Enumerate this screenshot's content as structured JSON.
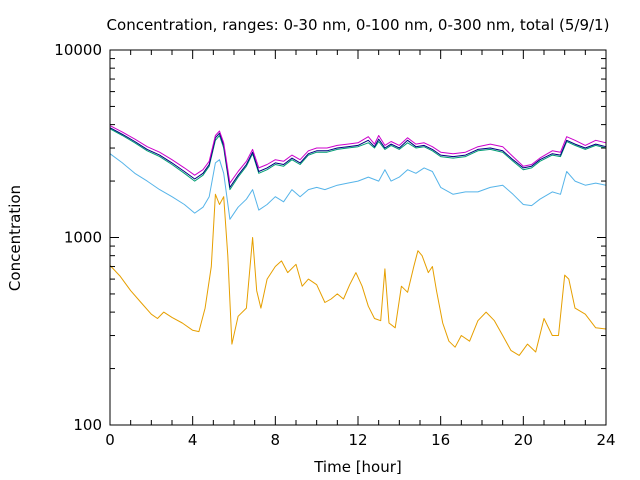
{
  "chart_data": {
    "type": "line",
    "title": "Concentration, ranges: 0-30 nm, 0-100 nm, 0-300 nm, total (5/9/1)",
    "xlabel": "Time [hour]",
    "ylabel": "Concentration",
    "xlim": [
      0,
      24
    ],
    "ylim": [
      100,
      10000
    ],
    "yscale": "log",
    "grid": false,
    "legend": "none",
    "x_ticks": [
      "0",
      "4",
      "8",
      "12",
      "16",
      "20",
      "24"
    ],
    "y_ticks": [
      "100",
      "1000",
      "10000"
    ],
    "series": [
      {
        "color": "#e69f00",
        "points": [
          [
            0,
            710
          ],
          [
            0.5,
            620
          ],
          [
            1,
            520
          ],
          [
            1.5,
            450
          ],
          [
            2,
            390
          ],
          [
            2.3,
            370
          ],
          [
            2.6,
            400
          ],
          [
            3,
            375
          ],
          [
            3.5,
            350
          ],
          [
            4,
            320
          ],
          [
            4.3,
            315
          ],
          [
            4.6,
            420
          ],
          [
            4.9,
            700
          ],
          [
            5.1,
            1700
          ],
          [
            5.3,
            1500
          ],
          [
            5.5,
            1650
          ],
          [
            5.7,
            800
          ],
          [
            5.9,
            270
          ],
          [
            6.2,
            380
          ],
          [
            6.6,
            420
          ],
          [
            6.9,
            1000
          ],
          [
            7.1,
            520
          ],
          [
            7.3,
            420
          ],
          [
            7.6,
            600
          ],
          [
            8,
            700
          ],
          [
            8.3,
            750
          ],
          [
            8.6,
            650
          ],
          [
            9,
            720
          ],
          [
            9.3,
            550
          ],
          [
            9.6,
            600
          ],
          [
            10,
            560
          ],
          [
            10.4,
            450
          ],
          [
            10.7,
            470
          ],
          [
            11,
            500
          ],
          [
            11.3,
            470
          ],
          [
            11.6,
            560
          ],
          [
            11.9,
            650
          ],
          [
            12.2,
            550
          ],
          [
            12.5,
            430
          ],
          [
            12.8,
            370
          ],
          [
            13.1,
            360
          ],
          [
            13.3,
            680
          ],
          [
            13.5,
            350
          ],
          [
            13.8,
            330
          ],
          [
            14.1,
            550
          ],
          [
            14.4,
            510
          ],
          [
            14.7,
            700
          ],
          [
            14.9,
            850
          ],
          [
            15.1,
            800
          ],
          [
            15.4,
            650
          ],
          [
            15.6,
            700
          ],
          [
            15.8,
            520
          ],
          [
            16.1,
            350
          ],
          [
            16.4,
            280
          ],
          [
            16.7,
            260
          ],
          [
            17,
            300
          ],
          [
            17.4,
            280
          ],
          [
            17.8,
            360
          ],
          [
            18.2,
            400
          ],
          [
            18.6,
            360
          ],
          [
            19,
            300
          ],
          [
            19.4,
            250
          ],
          [
            19.8,
            235
          ],
          [
            20.2,
            270
          ],
          [
            20.6,
            245
          ],
          [
            21,
            370
          ],
          [
            21.4,
            300
          ],
          [
            21.7,
            300
          ],
          [
            22,
            630
          ],
          [
            22.2,
            600
          ],
          [
            22.5,
            420
          ],
          [
            23,
            390
          ],
          [
            23.5,
            330
          ],
          [
            24,
            325
          ]
        ]
      },
      {
        "color": "#56b4e9",
        "points": [
          [
            0,
            2800
          ],
          [
            0.6,
            2500
          ],
          [
            1.2,
            2200
          ],
          [
            1.8,
            2000
          ],
          [
            2.4,
            1800
          ],
          [
            3,
            1650
          ],
          [
            3.6,
            1500
          ],
          [
            4.1,
            1350
          ],
          [
            4.5,
            1450
          ],
          [
            4.8,
            1650
          ],
          [
            5.1,
            2500
          ],
          [
            5.3,
            2600
          ],
          [
            5.5,
            2200
          ],
          [
            5.8,
            1250
          ],
          [
            6.2,
            1450
          ],
          [
            6.6,
            1600
          ],
          [
            6.9,
            1800
          ],
          [
            7.2,
            1400
          ],
          [
            7.6,
            1500
          ],
          [
            8,
            1650
          ],
          [
            8.4,
            1550
          ],
          [
            8.8,
            1800
          ],
          [
            9.2,
            1650
          ],
          [
            9.6,
            1800
          ],
          [
            10,
            1850
          ],
          [
            10.4,
            1800
          ],
          [
            11,
            1900
          ],
          [
            11.5,
            1950
          ],
          [
            12,
            2000
          ],
          [
            12.5,
            2100
          ],
          [
            13,
            2000
          ],
          [
            13.3,
            2300
          ],
          [
            13.6,
            2000
          ],
          [
            14,
            2100
          ],
          [
            14.4,
            2300
          ],
          [
            14.8,
            2200
          ],
          [
            15.2,
            2350
          ],
          [
            15.6,
            2250
          ],
          [
            16,
            1850
          ],
          [
            16.6,
            1700
          ],
          [
            17.2,
            1750
          ],
          [
            17.8,
            1750
          ],
          [
            18.4,
            1850
          ],
          [
            19,
            1900
          ],
          [
            19.5,
            1700
          ],
          [
            20,
            1500
          ],
          [
            20.4,
            1480
          ],
          [
            20.8,
            1600
          ],
          [
            21.4,
            1750
          ],
          [
            21.8,
            1700
          ],
          [
            22.1,
            2250
          ],
          [
            22.5,
            2000
          ],
          [
            23,
            1900
          ],
          [
            23.5,
            1950
          ],
          [
            24,
            1900
          ]
        ]
      },
      {
        "color": "#009e73",
        "points": [
          [
            0,
            3800
          ],
          [
            0.6,
            3500
          ],
          [
            1.2,
            3200
          ],
          [
            1.8,
            2900
          ],
          [
            2.4,
            2700
          ],
          [
            3,
            2450
          ],
          [
            3.6,
            2200
          ],
          [
            4.1,
            2000
          ],
          [
            4.5,
            2150
          ],
          [
            4.8,
            2400
          ],
          [
            5.1,
            3300
          ],
          [
            5.3,
            3500
          ],
          [
            5.5,
            3000
          ],
          [
            5.8,
            1800
          ],
          [
            6.2,
            2100
          ],
          [
            6.6,
            2400
          ],
          [
            6.9,
            2800
          ],
          [
            7.2,
            2200
          ],
          [
            7.6,
            2300
          ],
          [
            8,
            2450
          ],
          [
            8.4,
            2400
          ],
          [
            8.8,
            2600
          ],
          [
            9.2,
            2450
          ],
          [
            9.6,
            2750
          ],
          [
            10,
            2850
          ],
          [
            10.5,
            2850
          ],
          [
            11,
            2950
          ],
          [
            11.5,
            3000
          ],
          [
            12,
            3050
          ],
          [
            12.5,
            3200
          ],
          [
            12.8,
            3000
          ],
          [
            13,
            3250
          ],
          [
            13.3,
            2950
          ],
          [
            13.6,
            3100
          ],
          [
            14,
            2950
          ],
          [
            14.4,
            3200
          ],
          [
            14.8,
            3000
          ],
          [
            15.2,
            3050
          ],
          [
            15.6,
            2900
          ],
          [
            16,
            2700
          ],
          [
            16.6,
            2650
          ],
          [
            17.2,
            2700
          ],
          [
            17.8,
            2900
          ],
          [
            18.4,
            2950
          ],
          [
            19,
            2850
          ],
          [
            19.5,
            2550
          ],
          [
            20,
            2300
          ],
          [
            20.4,
            2350
          ],
          [
            20.8,
            2550
          ],
          [
            21.4,
            2750
          ],
          [
            21.8,
            2700
          ],
          [
            22.1,
            3250
          ],
          [
            22.5,
            3100
          ],
          [
            23,
            2950
          ],
          [
            23.5,
            3100
          ],
          [
            24,
            3000
          ]
        ]
      },
      {
        "color": "#000080",
        "points": [
          [
            0,
            3850
          ],
          [
            0.6,
            3550
          ],
          [
            1.2,
            3250
          ],
          [
            1.8,
            2950
          ],
          [
            2.4,
            2750
          ],
          [
            3,
            2500
          ],
          [
            3.6,
            2250
          ],
          [
            4.1,
            2050
          ],
          [
            4.5,
            2200
          ],
          [
            4.8,
            2450
          ],
          [
            5.1,
            3400
          ],
          [
            5.3,
            3600
          ],
          [
            5.5,
            3100
          ],
          [
            5.8,
            1850
          ],
          [
            6.2,
            2150
          ],
          [
            6.6,
            2450
          ],
          [
            6.9,
            2850
          ],
          [
            7.2,
            2250
          ],
          [
            7.6,
            2350
          ],
          [
            8,
            2500
          ],
          [
            8.4,
            2450
          ],
          [
            8.8,
            2650
          ],
          [
            9.2,
            2500
          ],
          [
            9.6,
            2800
          ],
          [
            10,
            2900
          ],
          [
            10.5,
            2900
          ],
          [
            11,
            3000
          ],
          [
            11.5,
            3050
          ],
          [
            12,
            3100
          ],
          [
            12.5,
            3300
          ],
          [
            12.8,
            3050
          ],
          [
            13,
            3350
          ],
          [
            13.3,
            3000
          ],
          [
            13.6,
            3150
          ],
          [
            14,
            3000
          ],
          [
            14.4,
            3300
          ],
          [
            14.8,
            3050
          ],
          [
            15.2,
            3100
          ],
          [
            15.6,
            2950
          ],
          [
            16,
            2750
          ],
          [
            16.6,
            2700
          ],
          [
            17.2,
            2750
          ],
          [
            17.8,
            2950
          ],
          [
            18.4,
            3000
          ],
          [
            19,
            2900
          ],
          [
            19.5,
            2600
          ],
          [
            20,
            2350
          ],
          [
            20.4,
            2400
          ],
          [
            20.8,
            2600
          ],
          [
            21.4,
            2800
          ],
          [
            21.8,
            2750
          ],
          [
            22.1,
            3300
          ],
          [
            22.5,
            3150
          ],
          [
            23,
            3000
          ],
          [
            23.5,
            3150
          ],
          [
            24,
            3050
          ]
        ]
      },
      {
        "color": "#cc00cc",
        "points": [
          [
            0,
            3950
          ],
          [
            0.6,
            3650
          ],
          [
            1.2,
            3350
          ],
          [
            1.8,
            3050
          ],
          [
            2.4,
            2850
          ],
          [
            3,
            2600
          ],
          [
            3.6,
            2350
          ],
          [
            4.1,
            2150
          ],
          [
            4.5,
            2300
          ],
          [
            4.8,
            2550
          ],
          [
            5.1,
            3500
          ],
          [
            5.3,
            3700
          ],
          [
            5.5,
            3200
          ],
          [
            5.8,
            1950
          ],
          [
            6.2,
            2250
          ],
          [
            6.6,
            2550
          ],
          [
            6.9,
            2950
          ],
          [
            7.2,
            2350
          ],
          [
            7.6,
            2450
          ],
          [
            8,
            2600
          ],
          [
            8.4,
            2550
          ],
          [
            8.8,
            2750
          ],
          [
            9.2,
            2600
          ],
          [
            9.6,
            2900
          ],
          [
            10,
            3000
          ],
          [
            10.5,
            3000
          ],
          [
            11,
            3100
          ],
          [
            11.5,
            3150
          ],
          [
            12,
            3200
          ],
          [
            12.5,
            3450
          ],
          [
            12.8,
            3150
          ],
          [
            13,
            3500
          ],
          [
            13.3,
            3100
          ],
          [
            13.6,
            3250
          ],
          [
            14,
            3100
          ],
          [
            14.4,
            3400
          ],
          [
            14.8,
            3150
          ],
          [
            15.2,
            3200
          ],
          [
            15.6,
            3050
          ],
          [
            16,
            2850
          ],
          [
            16.6,
            2800
          ],
          [
            17.2,
            2850
          ],
          [
            17.8,
            3050
          ],
          [
            18.4,
            3150
          ],
          [
            19,
            3050
          ],
          [
            19.5,
            2700
          ],
          [
            20,
            2400
          ],
          [
            20.4,
            2450
          ],
          [
            20.8,
            2650
          ],
          [
            21.4,
            2900
          ],
          [
            21.8,
            2850
          ],
          [
            22.1,
            3450
          ],
          [
            22.5,
            3300
          ],
          [
            23,
            3100
          ],
          [
            23.5,
            3300
          ],
          [
            24,
            3200
          ]
        ]
      }
    ]
  }
}
